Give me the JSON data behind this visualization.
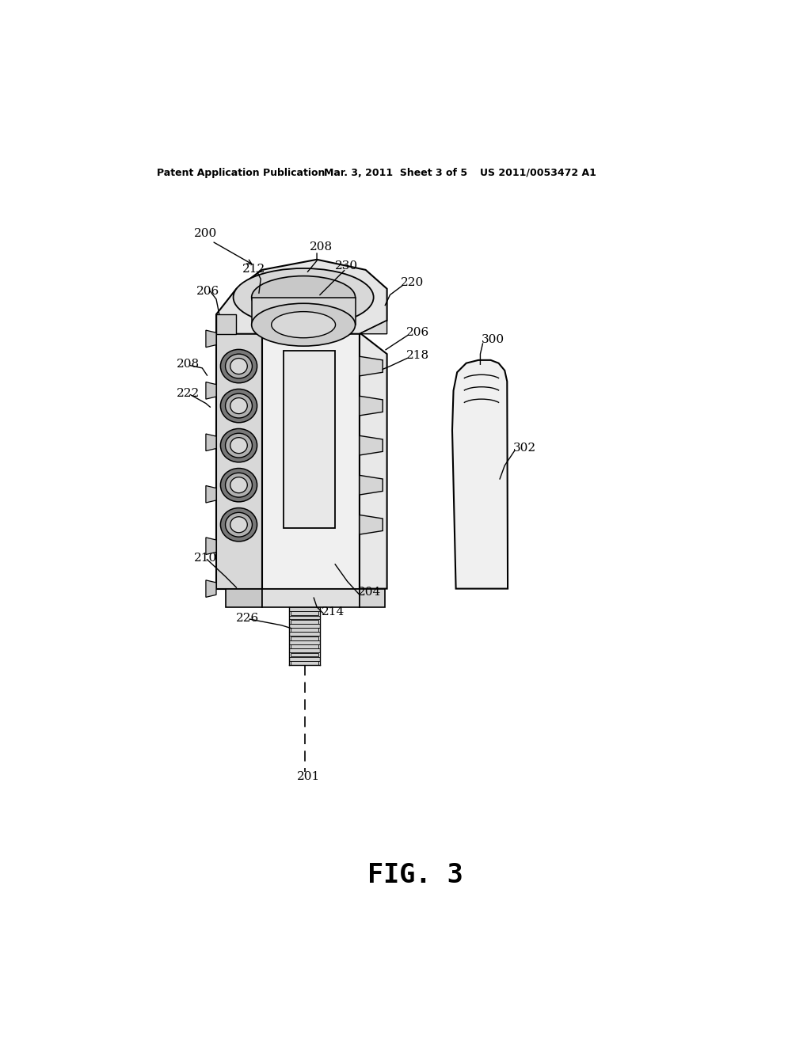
{
  "bg_color": "#ffffff",
  "header_left": "Patent Application Publication",
  "header_mid": "Mar. 3, 2011  Sheet 3 of 5",
  "header_right": "US 2011/0053472 A1",
  "figure_label": "FIG. 3",
  "lc": "#000000",
  "fc_front": "#f0f0f0",
  "fc_left": "#d8d8d8",
  "fc_right": "#e8e8e8",
  "fc_top": "#e5e5e5",
  "fc_hole_outer": "#808080",
  "fc_hole_mid": "#b8b8b8",
  "fc_hole_inner": "#e0e0e0",
  "fc_slot": "#e8e8e8",
  "fc_pad": "#f0f0f0",
  "fc_bolt": "#d5d5d5"
}
